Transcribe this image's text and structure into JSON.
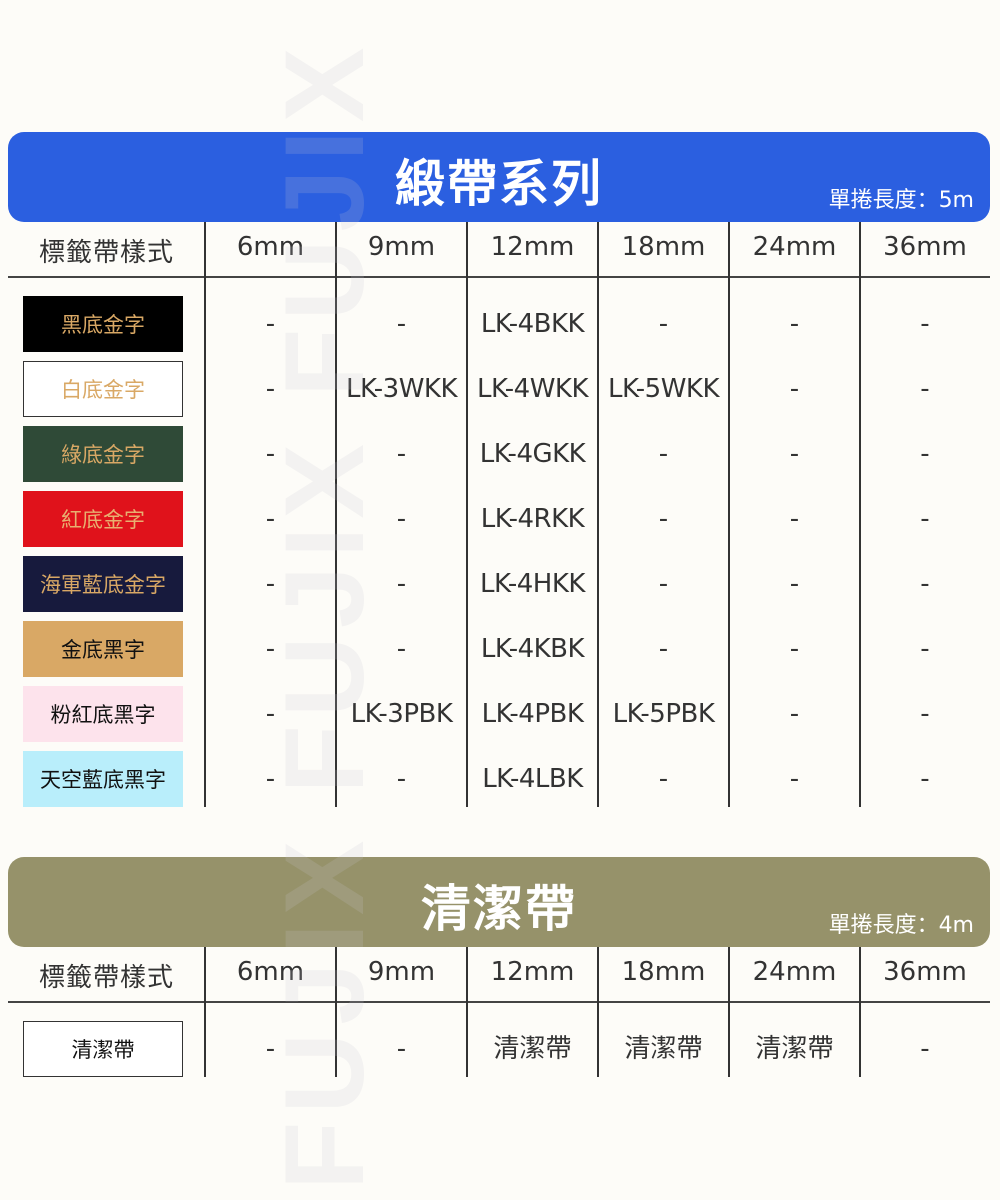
{
  "watermark": "FUJIX FUJIX FUJIX",
  "columns": [
    "標籤帶樣式",
    "6mm",
    "9mm",
    "12mm",
    "18mm",
    "24mm",
    "36mm"
  ],
  "sections": [
    {
      "title": "緞帶系列",
      "subtitle": "單捲長度：5m",
      "color": "#2b5fe0",
      "rows": [
        {
          "label": "黑底金字",
          "bg": "#000000",
          "fg": "#d9a865",
          "values": [
            "-",
            "-",
            "LK-4BKK",
            "-",
            "-",
            "-"
          ]
        },
        {
          "label": "白底金字",
          "bg": "#ffffff",
          "fg": "#d9a865",
          "border": true,
          "values": [
            "-",
            "LK-3WKK",
            "LK-4WKK",
            "LK-5WKK",
            "-",
            "-"
          ]
        },
        {
          "label": "綠底金字",
          "bg": "#2f4a37",
          "fg": "#d9a865",
          "values": [
            "-",
            "-",
            "LK-4GKK",
            "-",
            "-",
            "-"
          ]
        },
        {
          "label": "紅底金字",
          "bg": "#e0121b",
          "fg": "#e8b070",
          "values": [
            "-",
            "-",
            "LK-4RKK",
            "-",
            "-",
            "-"
          ]
        },
        {
          "label": "海軍藍底金字",
          "bg": "#171a3d",
          "fg": "#d9a865",
          "values": [
            "-",
            "-",
            "LK-4HKK",
            "-",
            "-",
            "-"
          ]
        },
        {
          "label": "金底黑字",
          "bg": "#d9a865",
          "fg": "#111111",
          "values": [
            "-",
            "-",
            "LK-4KBK",
            "-",
            "-",
            "-"
          ]
        },
        {
          "label": "粉紅底黑字",
          "bg": "#fde3ec",
          "fg": "#111111",
          "values": [
            "-",
            "LK-3PBK",
            "LK-4PBK",
            "LK-5PBK",
            "-",
            "-"
          ]
        },
        {
          "label": "天空藍底黑字",
          "bg": "#b9eefb",
          "fg": "#111111",
          "values": [
            "-",
            "-",
            "LK-4LBK",
            "-",
            "-",
            "-"
          ]
        }
      ]
    },
    {
      "title": "清潔帶",
      "subtitle": "單捲長度：4m",
      "color": "#96926a",
      "rows": [
        {
          "label": "清潔帶",
          "bg": "#ffffff",
          "fg": "#111111",
          "border": true,
          "values": [
            "-",
            "-",
            "清潔帶",
            "清潔帶",
            "清潔帶",
            "-"
          ]
        }
      ]
    }
  ]
}
